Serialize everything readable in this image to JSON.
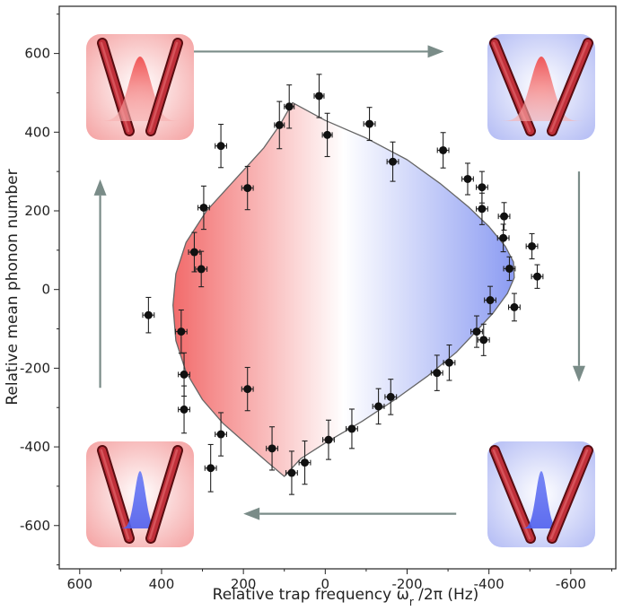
{
  "chart_data": {
    "type": "scatter",
    "xlabel": "Relative trap frequency ω",
    "xlabel_sub": "r",
    "xlabel_rest": " /2π (Hz)",
    "ylabel": "Relative mean phonon number",
    "xlim": [
      650,
      -710
    ],
    "ylim": [
      -710,
      720
    ],
    "x_axis_reversed": true,
    "x_ticks": [
      600,
      400,
      200,
      0,
      -200,
      -400,
      -600
    ],
    "x_tick_labels": [
      "600",
      "400",
      "200",
      "0",
      "-200",
      "-400",
      "-600"
    ],
    "y_ticks": [
      600,
      400,
      200,
      0,
      -200,
      -400,
      -600
    ],
    "y_tick_labels": [
      "600",
      "400",
      "200",
      "0",
      "-200",
      "-400",
      "-600"
    ],
    "grid": false,
    "colors": {
      "fill_left": "#f26b6b",
      "fill_right": "#8c9cf2",
      "points": "#111111",
      "arrows": "#7a8c88",
      "cylinders": "#a0252b",
      "red_wave": "#e84848",
      "blue_wave": "#5566ee"
    },
    "points": [
      {
        "x": 15,
        "y": 492,
        "xerr": 12,
        "yerr": 55
      },
      {
        "x": 88,
        "y": 465,
        "xerr": 12,
        "yerr": 55
      },
      {
        "x": 112,
        "y": 418,
        "xerr": 12,
        "yerr": 60
      },
      {
        "x": -5,
        "y": 393,
        "xerr": 12,
        "yerr": 55
      },
      {
        "x": -108,
        "y": 421,
        "xerr": 14,
        "yerr": 42
      },
      {
        "x": -165,
        "y": 325,
        "xerr": 14,
        "yerr": 50
      },
      {
        "x": -288,
        "y": 354,
        "xerr": 14,
        "yerr": 45
      },
      {
        "x": -348,
        "y": 281,
        "xerr": 14,
        "yerr": 40
      },
      {
        "x": -383,
        "y": 260,
        "xerr": 14,
        "yerr": 40
      },
      {
        "x": -383,
        "y": 205,
        "xerr": 14,
        "yerr": 40
      },
      {
        "x": -437,
        "y": 186,
        "xerr": 14,
        "yerr": 35
      },
      {
        "x": -435,
        "y": 131,
        "xerr": 14,
        "yerr": 35
      },
      {
        "x": -505,
        "y": 110,
        "xerr": 14,
        "yerr": 32
      },
      {
        "x": -450,
        "y": 53,
        "xerr": 14,
        "yerr": 30
      },
      {
        "x": -518,
        "y": 33,
        "xerr": 14,
        "yerr": 30
      },
      {
        "x": -403,
        "y": -27,
        "xerr": 14,
        "yerr": 35
      },
      {
        "x": -462,
        "y": -45,
        "xerr": 14,
        "yerr": 35
      },
      {
        "x": -370,
        "y": -107,
        "xerr": 14,
        "yerr": 40
      },
      {
        "x": -387,
        "y": -128,
        "xerr": 14,
        "yerr": 40
      },
      {
        "x": -303,
        "y": -186,
        "xerr": 14,
        "yerr": 45
      },
      {
        "x": -273,
        "y": -212,
        "xerr": 14,
        "yerr": 45
      },
      {
        "x": -160,
        "y": -273,
        "xerr": 14,
        "yerr": 45
      },
      {
        "x": -130,
        "y": -297,
        "xerr": 14,
        "yerr": 45
      },
      {
        "x": -65,
        "y": -354,
        "xerr": 14,
        "yerr": 50
      },
      {
        "x": -8,
        "y": -382,
        "xerr": 14,
        "yerr": 50
      },
      {
        "x": 50,
        "y": -440,
        "xerr": 14,
        "yerr": 55
      },
      {
        "x": 82,
        "y": -466,
        "xerr": 14,
        "yerr": 55
      },
      {
        "x": 130,
        "y": -404,
        "xerr": 14,
        "yerr": 55
      },
      {
        "x": 190,
        "y": -253,
        "xerr": 14,
        "yerr": 55
      },
      {
        "x": 255,
        "y": -368,
        "xerr": 14,
        "yerr": 55
      },
      {
        "x": 280,
        "y": -454,
        "xerr": 14,
        "yerr": 60
      },
      {
        "x": 345,
        "y": -305,
        "xerr": 14,
        "yerr": 60
      },
      {
        "x": 345,
        "y": -216,
        "xerr": 14,
        "yerr": 55
      },
      {
        "x": 352,
        "y": -107,
        "xerr": 14,
        "yerr": 55
      },
      {
        "x": 432,
        "y": -65,
        "xerr": 14,
        "yerr": 45
      },
      {
        "x": 303,
        "y": 52,
        "xerr": 14,
        "yerr": 45
      },
      {
        "x": 320,
        "y": 95,
        "xerr": 14,
        "yerr": 50
      },
      {
        "x": 297,
        "y": 208,
        "xerr": 14,
        "yerr": 55
      },
      {
        "x": 190,
        "y": 258,
        "xerr": 14,
        "yerr": 55
      },
      {
        "x": 255,
        "y": 365,
        "xerr": 14,
        "yerr": 55
      }
    ],
    "boundary": [
      [
        80,
        475
      ],
      [
        0,
        430
      ],
      [
        -100,
        385
      ],
      [
        -200,
        330
      ],
      [
        -280,
        270
      ],
      [
        -350,
        210
      ],
      [
        -400,
        160
      ],
      [
        -440,
        110
      ],
      [
        -460,
        70
      ],
      [
        -462,
        30
      ],
      [
        -445,
        -10
      ],
      [
        -410,
        -60
      ],
      [
        -370,
        -105
      ],
      [
        -320,
        -160
      ],
      [
        -250,
        -220
      ],
      [
        -170,
        -280
      ],
      [
        -90,
        -335
      ],
      [
        0,
        -390
      ],
      [
        60,
        -430
      ],
      [
        100,
        -475
      ],
      [
        140,
        -440
      ],
      [
        190,
        -395
      ],
      [
        250,
        -340
      ],
      [
        300,
        -280
      ],
      [
        340,
        -210
      ],
      [
        365,
        -130
      ],
      [
        372,
        -40
      ],
      [
        365,
        40
      ],
      [
        340,
        120
      ],
      [
        290,
        200
      ],
      [
        220,
        280
      ],
      [
        150,
        360
      ],
      [
        110,
        420
      ],
      [
        80,
        475
      ]
    ],
    "flow_arrows": [
      {
        "name": "top",
        "from": [
          470,
          605
        ],
        "to": [
          -290,
          605
        ]
      },
      {
        "name": "right",
        "from": [
          -620,
          300
        ],
        "to": [
          -620,
          -235
        ]
      },
      {
        "name": "bottom",
        "from": [
          -320,
          -570
        ],
        "to": [
          200,
          -570
        ]
      },
      {
        "name": "left",
        "from": [
          550,
          -250
        ],
        "to": [
          550,
          280
        ]
      }
    ],
    "insets": [
      {
        "name": "top-left",
        "position": "top-left",
        "background": "red",
        "wave": "red",
        "wave_shape": "wide",
        "trap": "narrow"
      },
      {
        "name": "top-right",
        "position": "top-right",
        "background": "blue",
        "wave": "red",
        "wave_shape": "wide",
        "trap": "wide"
      },
      {
        "name": "bottom-right",
        "position": "bottom-right",
        "background": "blue",
        "wave": "blue",
        "wave_shape": "narrow",
        "trap": "wide"
      },
      {
        "name": "bottom-left",
        "position": "bottom-left",
        "background": "red",
        "wave": "blue",
        "wave_shape": "narrow",
        "trap": "narrow"
      }
    ]
  }
}
